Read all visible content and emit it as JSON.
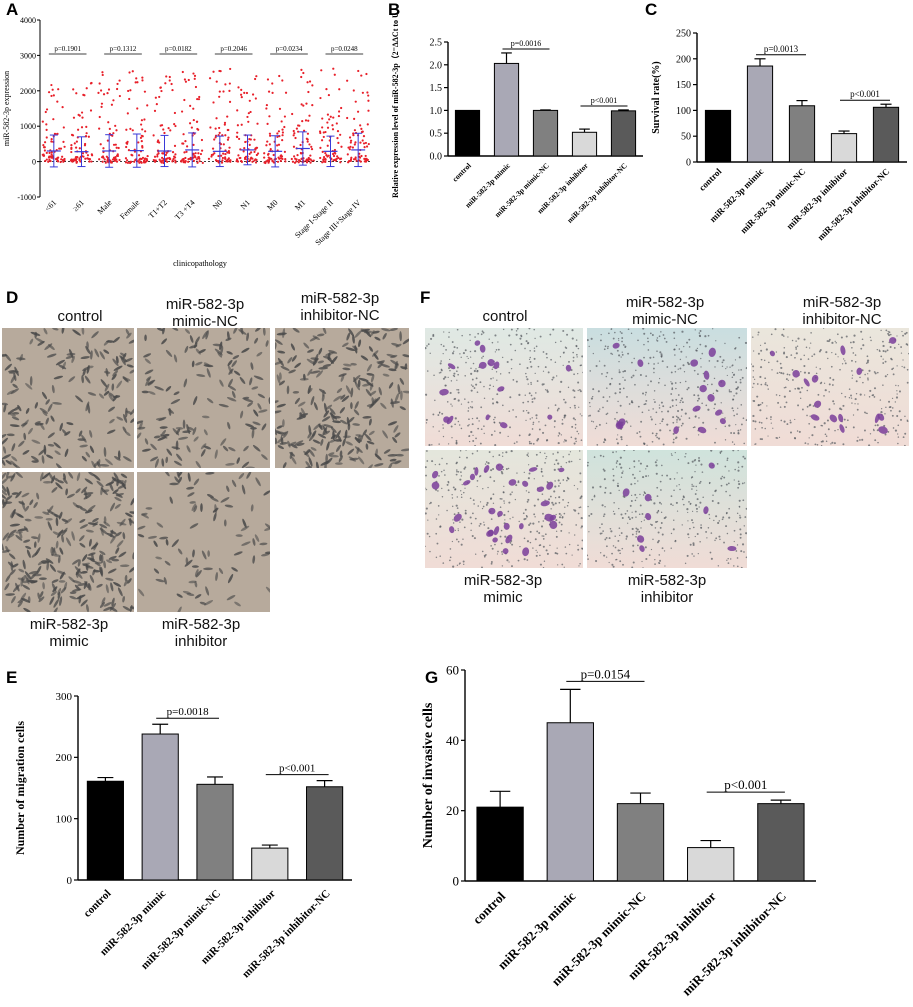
{
  "panels": {
    "A": "A",
    "B": "B",
    "C": "C",
    "D": "D",
    "E": "E",
    "F": "F",
    "G": "G"
  },
  "chart_data": [
    {
      "id": "A",
      "type": "scatter",
      "ylabel": "miR-582-3p expression",
      "xlabel": "clinicopathology",
      "ylim": [
        -1000,
        4000
      ],
      "yticks": [
        -1000,
        0,
        1000,
        2000,
        3000,
        4000
      ],
      "categories": [
        "<61",
        "≥61",
        "Male",
        "Female",
        "T1+T2",
        "T3 +T4",
        "N0",
        "N1",
        "M0",
        "M1",
        "Stage I-Stage II",
        "Stage III+Stage IV"
      ],
      "mean": [
        300,
        280,
        300,
        310,
        300,
        330,
        290,
        330,
        290,
        370,
        290,
        330
      ],
      "sd": [
        450,
        420,
        460,
        470,
        440,
        480,
        430,
        420,
        440,
        470,
        430,
        470
      ],
      "comparisons": [
        {
          "pair": [
            0,
            1
          ],
          "label": "p=0.1901"
        },
        {
          "pair": [
            2,
            3
          ],
          "label": "p=0.1312"
        },
        {
          "pair": [
            4,
            5
          ],
          "label": "p=0.0182"
        },
        {
          "pair": [
            6,
            7
          ],
          "label": "p=0.2046"
        },
        {
          "pair": [
            8,
            9
          ],
          "label": "p=0.0234"
        },
        {
          "pair": [
            10,
            11
          ],
          "label": "p=0.0248"
        }
      ],
      "colors": {
        "points": "#e8202a",
        "error": "#3a3ad8"
      }
    },
    {
      "id": "B",
      "type": "bar",
      "ylabel": "Relative expression level of miR-582-3p（2⁻ΔΔCt to U6）",
      "ylim": [
        0,
        2.5
      ],
      "yticks": [
        0.0,
        0.5,
        1.0,
        1.5,
        2.0,
        2.5
      ],
      "categories": [
        "control",
        "miR-582-3p mimic",
        "miR-582-3p mimic-NC",
        "miR-582-3p inhibitor",
        "miR-582-3p inhibitor-NC"
      ],
      "values": [
        1.0,
        2.03,
        1.0,
        0.52,
        0.99
      ],
      "errors": [
        0,
        0.23,
        0.01,
        0.07,
        0.02
      ],
      "comparisons": [
        {
          "pair": [
            1,
            2
          ],
          "label": "p=0.0016"
        },
        {
          "pair": [
            3,
            4
          ],
          "label": "p<0.001"
        }
      ],
      "bar_colors": [
        "#000000",
        "#a9a8b5",
        "#808080",
        "#d9d9d9",
        "#5a5a5a"
      ]
    },
    {
      "id": "C",
      "type": "bar",
      "ylabel": "Survival rate(%)",
      "ylim": [
        0,
        250
      ],
      "yticks": [
        0,
        50,
        100,
        150,
        200,
        250
      ],
      "categories": [
        "control",
        "miR-582-3p mimic",
        "miR-582-3p mimic-NC",
        "miR-582-3p inhibitor",
        "miR-582-3p inhibitor-NC"
      ],
      "values": [
        100,
        186,
        109,
        55,
        106
      ],
      "errors": [
        0,
        14,
        10,
        5,
        6
      ],
      "comparisons": [
        {
          "pair": [
            1,
            2
          ],
          "label": "p=0.0013"
        },
        {
          "pair": [
            3,
            4
          ],
          "label": "p<0.001"
        }
      ],
      "bar_colors": [
        "#000000",
        "#a9a8b5",
        "#808080",
        "#d9d9d9",
        "#5a5a5a"
      ]
    },
    {
      "id": "E",
      "type": "bar",
      "ylabel": "Number of migration cells",
      "ylim": [
        0,
        300
      ],
      "yticks": [
        0,
        100,
        200,
        300
      ],
      "categories": [
        "control",
        "miR-582-3p mimic",
        "miR-582-3p mimic-NC",
        "miR-582-3p inhibitor",
        "miR-582-3p inhibitor-NC"
      ],
      "values": [
        161,
        238,
        156,
        52,
        152
      ],
      "errors": [
        6,
        16,
        12,
        5,
        10
      ],
      "comparisons": [
        {
          "pair": [
            1,
            2
          ],
          "label": "p=0.0018"
        },
        {
          "pair": [
            3,
            4
          ],
          "label": "p<0.001"
        }
      ],
      "bar_colors": [
        "#000000",
        "#a9a8b5",
        "#808080",
        "#d9d9d9",
        "#5a5a5a"
      ]
    },
    {
      "id": "G",
      "type": "bar",
      "ylabel": "Number of invasive cells",
      "ylim": [
        0,
        60
      ],
      "yticks": [
        0,
        20,
        40,
        60
      ],
      "categories": [
        "control",
        "miR-582-3p mimic",
        "miR-582-3p mimic-NC",
        "miR-582-3p inhibitor",
        "miR-582-3p inhibitor-NC"
      ],
      "values": [
        21,
        45,
        22,
        9.5,
        22
      ],
      "errors": [
        4.5,
        9.5,
        3,
        2,
        1
      ],
      "comparisons": [
        {
          "pair": [
            1,
            2
          ],
          "label": "p=0.0154"
        },
        {
          "pair": [
            3,
            4
          ],
          "label": "p<0.001"
        }
      ],
      "bar_colors": [
        "#000000",
        "#a9a8b5",
        "#808080",
        "#d9d9d9",
        "#5a5a5a"
      ]
    }
  ],
  "micrographs_D": {
    "labels": {
      "control": "control",
      "mimic_nc_1": "miR-582-3p",
      "mimic_nc_2": "mimic-NC",
      "inhibitor_nc_1": "miR-582-3p",
      "inhibitor_nc_2": "inhibitor-NC",
      "mimic_1": "miR-582-3p",
      "mimic_2": "mimic",
      "inhibitor_1": "miR-582-3p",
      "inhibitor_2": "inhibitor"
    },
    "colors": {
      "background": "#b7aa9c",
      "cells": "#4a4a4a"
    }
  },
  "micrographs_F": {
    "labels": {
      "control": "control",
      "mimic_nc_1": "miR-582-3p",
      "mimic_nc_2": "mimic-NC",
      "inhibitor_nc_1": "miR-582-3p",
      "inhibitor_nc_2": "inhibitor-NC",
      "mimic_1": "miR-582-3p",
      "mimic_2": "mimic",
      "inhibitor_1": "miR-582-3p",
      "inhibitor_2": "inhibitor"
    },
    "colors": {
      "background": "#e9e2d9",
      "cells": "#7a3e9a",
      "pores": "#555a60"
    }
  }
}
